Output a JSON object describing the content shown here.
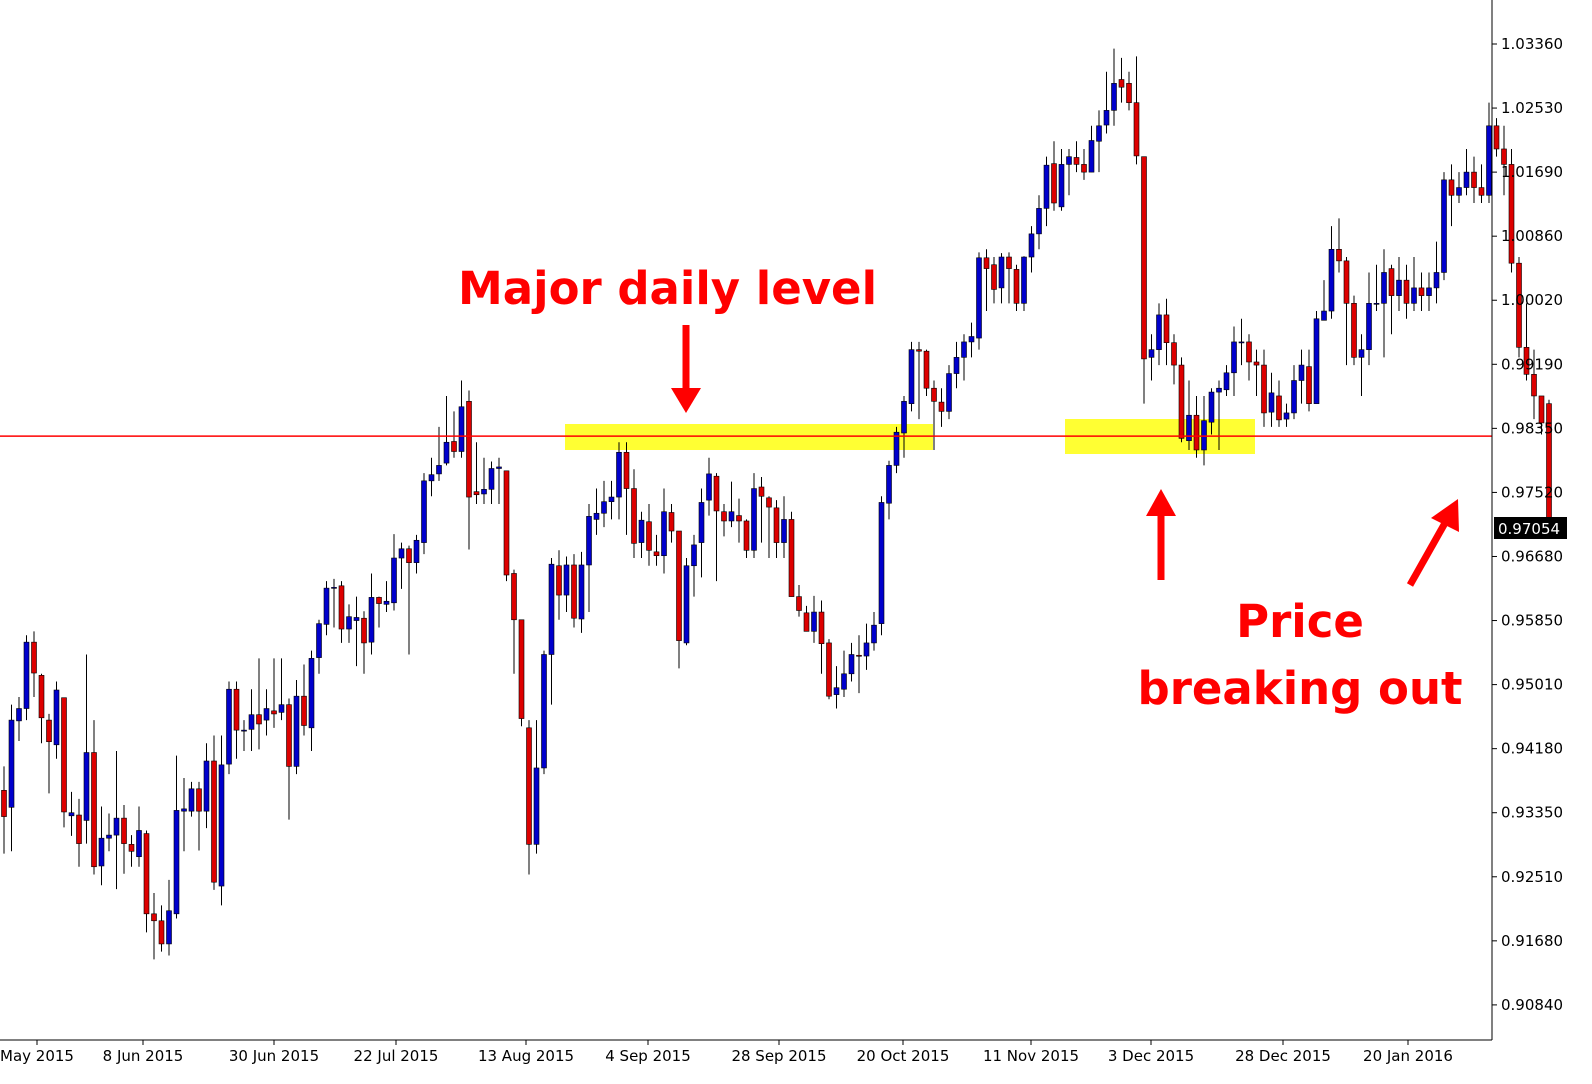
{
  "chart_data": {
    "type": "candlestick",
    "y_axis_ticks": [
      "1.03360",
      "1.02530",
      "1.01690",
      "1.00860",
      "1.00020",
      "0.99190",
      "0.98350",
      "0.97520",
      "0.96680",
      "0.95850",
      "0.95010",
      "0.94180",
      "0.93350",
      "0.92510",
      "0.91680",
      "0.90840"
    ],
    "ylim": [
      0.9036,
      1.0377
    ],
    "x_axis_ticks": [
      "May 2015",
      "8 Jun 2015",
      "30 Jun 2015",
      "22 Jul 2015",
      "13 Aug 2015",
      "4 Sep 2015",
      "28 Sep 2015",
      "20 Oct 2015",
      "11 Nov 2015",
      "3 Dec 2015",
      "28 Dec 2015",
      "20 Jan 2016"
    ],
    "current_price": "0.97054",
    "level_price": 0.9828,
    "colors": {
      "up": "#0000cc",
      "down": "#dd0000",
      "level": "#ff0000",
      "zone": "#ffff33",
      "annotation": "#ff0000"
    },
    "annotations": [
      "Major daily level",
      "Price",
      "breaking out"
    ],
    "candles": [
      [
        0.9369,
        0.9335,
        0.94,
        0.9287
      ],
      [
        0.9347,
        0.946,
        0.948,
        0.929
      ],
      [
        0.9459,
        0.9475,
        0.949,
        0.9433
      ],
      [
        0.9475,
        0.9561,
        0.957,
        0.946
      ],
      [
        0.9561,
        0.9521,
        0.9575,
        0.949
      ],
      [
        0.9518,
        0.9463,
        0.952,
        0.943
      ],
      [
        0.946,
        0.9432,
        0.9468,
        0.9365
      ],
      [
        0.9428,
        0.9499,
        0.951,
        0.941
      ],
      [
        0.9489,
        0.9341,
        0.9489,
        0.9321
      ],
      [
        0.9336,
        0.934,
        0.9367,
        0.931
      ],
      [
        0.9337,
        0.93,
        0.9358,
        0.927
      ],
      [
        0.933,
        0.9418,
        0.9545,
        0.93
      ],
      [
        0.9418,
        0.927,
        0.946,
        0.926
      ],
      [
        0.9271,
        0.9307,
        0.9348,
        0.9246
      ],
      [
        0.9307,
        0.9311,
        0.9339,
        0.929
      ],
      [
        0.9311,
        0.9333,
        0.942,
        0.9241
      ],
      [
        0.9333,
        0.93,
        0.935,
        0.9261
      ],
      [
        0.9299,
        0.929,
        0.9311,
        0.927
      ],
      [
        0.9283,
        0.9317,
        0.9348,
        0.927
      ],
      [
        0.9313,
        0.9209,
        0.9317,
        0.9185
      ],
      [
        0.9209,
        0.92,
        0.9236,
        0.915
      ],
      [
        0.92,
        0.917,
        0.922,
        0.916
      ],
      [
        0.917,
        0.9213,
        0.9253,
        0.9155
      ],
      [
        0.9209,
        0.9343,
        0.9414,
        0.9203
      ],
      [
        0.9342,
        0.9345,
        0.9385,
        0.929
      ],
      [
        0.9342,
        0.9371,
        0.938,
        0.9335
      ],
      [
        0.9371,
        0.9342,
        0.938,
        0.9291
      ],
      [
        0.9342,
        0.9407,
        0.943,
        0.932
      ],
      [
        0.9407,
        0.925,
        0.944,
        0.924
      ],
      [
        0.9245,
        0.9402,
        0.944,
        0.922
      ],
      [
        0.9403,
        0.95,
        0.951,
        0.939
      ],
      [
        0.95,
        0.9447,
        0.951,
        0.941
      ],
      [
        0.9447,
        0.9447,
        0.946,
        0.942
      ],
      [
        0.9448,
        0.9467,
        0.95,
        0.942
      ],
      [
        0.9467,
        0.9455,
        0.954,
        0.9422
      ],
      [
        0.946,
        0.9475,
        0.95,
        0.944
      ],
      [
        0.9472,
        0.9468,
        0.954,
        0.945
      ],
      [
        0.947,
        0.948,
        0.954,
        0.946
      ],
      [
        0.948,
        0.94,
        0.9488,
        0.9331
      ],
      [
        0.94,
        0.9491,
        0.9512,
        0.939
      ],
      [
        0.9491,
        0.9453,
        0.9532,
        0.944
      ],
      [
        0.945,
        0.954,
        0.955,
        0.942
      ],
      [
        0.9541,
        0.9585,
        0.959,
        0.952
      ],
      [
        0.9584,
        0.9631,
        0.964,
        0.957
      ],
      [
        0.9631,
        0.9632,
        0.9643,
        0.958
      ],
      [
        0.9634,
        0.9578,
        0.964,
        0.956
      ],
      [
        0.9578,
        0.9594,
        0.961,
        0.956
      ],
      [
        0.9589,
        0.9593,
        0.962,
        0.953
      ],
      [
        0.9592,
        0.956,
        0.9601,
        0.952
      ],
      [
        0.9561,
        0.9619,
        0.965,
        0.9545
      ],
      [
        0.9619,
        0.9611,
        0.962,
        0.958
      ],
      [
        0.961,
        0.9614,
        0.964,
        0.96
      ],
      [
        0.9612,
        0.967,
        0.9701,
        0.9602
      ],
      [
        0.967,
        0.9682,
        0.969,
        0.963
      ],
      [
        0.9682,
        0.9664,
        0.9686,
        0.9545
      ],
      [
        0.9664,
        0.9693,
        0.97,
        0.965
      ],
      [
        0.969,
        0.977,
        0.978,
        0.9675
      ],
      [
        0.977,
        0.9778,
        0.98,
        0.975
      ],
      [
        0.9779,
        0.979,
        0.984,
        0.977
      ],
      [
        0.9793,
        0.982,
        0.988,
        0.979
      ],
      [
        0.9821,
        0.9808,
        0.986,
        0.98
      ],
      [
        0.9808,
        0.9866,
        0.99,
        0.98
      ],
      [
        0.9873,
        0.9749,
        0.9887,
        0.9681
      ],
      [
        0.9756,
        0.9752,
        0.982,
        0.974
      ],
      [
        0.9753,
        0.9759,
        0.98,
        0.974
      ],
      [
        0.9759,
        0.9786,
        0.9795,
        0.974
      ],
      [
        0.9786,
        0.9788,
        0.98,
        0.974
      ],
      [
        0.9783,
        0.9648,
        0.9783,
        0.964
      ],
      [
        0.965,
        0.959,
        0.9655,
        0.952
      ],
      [
        0.959,
        0.9462,
        0.959,
        0.9452
      ],
      [
        0.945,
        0.9299,
        0.946,
        0.926
      ],
      [
        0.9299,
        0.9398,
        0.946,
        0.9287
      ],
      [
        0.9398,
        0.9545,
        0.955,
        0.939
      ],
      [
        0.9545,
        0.9662,
        0.967,
        0.948
      ],
      [
        0.966,
        0.9622,
        0.968,
        0.959
      ],
      [
        0.9622,
        0.9661,
        0.9672,
        0.96
      ],
      [
        0.9661,
        0.9592,
        0.9675,
        0.958
      ],
      [
        0.9591,
        0.9661,
        0.9678,
        0.9573
      ],
      [
        0.9661,
        0.9724,
        0.974,
        0.96
      ],
      [
        0.972,
        0.9728,
        0.976,
        0.97
      ],
      [
        0.9728,
        0.9743,
        0.977,
        0.971
      ],
      [
        0.9743,
        0.9749,
        0.977,
        0.972
      ],
      [
        0.9749,
        0.9807,
        0.982,
        0.972
      ],
      [
        0.9807,
        0.976,
        0.982,
        0.97
      ],
      [
        0.976,
        0.9689,
        0.9785,
        0.967
      ],
      [
        0.969,
        0.9719,
        0.973,
        0.967
      ],
      [
        0.9717,
        0.968,
        0.974,
        0.966
      ],
      [
        0.9678,
        0.9673,
        0.97,
        0.966
      ],
      [
        0.9673,
        0.973,
        0.976,
        0.965
      ],
      [
        0.9729,
        0.9705,
        0.974,
        0.969
      ],
      [
        0.9705,
        0.9563,
        0.9705,
        0.9527
      ],
      [
        0.956,
        0.966,
        0.967,
        0.9557
      ],
      [
        0.966,
        0.9687,
        0.97,
        0.962
      ],
      [
        0.969,
        0.9742,
        0.976,
        0.9645
      ],
      [
        0.9745,
        0.9779,
        0.98,
        0.9725
      ],
      [
        0.9776,
        0.9731,
        0.978,
        0.964
      ],
      [
        0.973,
        0.9718,
        0.974,
        0.9698
      ],
      [
        0.9718,
        0.973,
        0.9769,
        0.971
      ],
      [
        0.9725,
        0.9718,
        0.9747,
        0.969
      ],
      [
        0.9718,
        0.968,
        0.972,
        0.967
      ],
      [
        0.968,
        0.976,
        0.978,
        0.967
      ],
      [
        0.9762,
        0.975,
        0.9775,
        0.969
      ],
      [
        0.9748,
        0.9736,
        0.975,
        0.967
      ],
      [
        0.9735,
        0.969,
        0.9745,
        0.967
      ],
      [
        0.969,
        0.972,
        0.975,
        0.967
      ],
      [
        0.972,
        0.962,
        0.973,
        0.962
      ],
      [
        0.962,
        0.9602,
        0.9635,
        0.9594
      ],
      [
        0.9599,
        0.9575,
        0.9608,
        0.9575
      ],
      [
        0.9575,
        0.96,
        0.9621,
        0.956
      ],
      [
        0.96,
        0.9559,
        0.9615,
        0.952
      ],
      [
        0.956,
        0.9491,
        0.9565,
        0.9487
      ],
      [
        0.9493,
        0.9502,
        0.953,
        0.9475
      ],
      [
        0.95,
        0.952,
        0.955,
        0.949
      ],
      [
        0.952,
        0.9545,
        0.956,
        0.951
      ],
      [
        0.9544,
        0.9543,
        0.957,
        0.9495
      ],
      [
        0.9543,
        0.956,
        0.9585,
        0.9525
      ],
      [
        0.956,
        0.9583,
        0.96,
        0.955
      ],
      [
        0.9585,
        0.9742,
        0.975,
        0.957
      ],
      [
        0.9741,
        0.979,
        0.9796,
        0.972
      ],
      [
        0.979,
        0.9833,
        0.984,
        0.978
      ],
      [
        0.9832,
        0.9873,
        0.988,
        0.98
      ],
      [
        0.987,
        0.994,
        0.995,
        0.986
      ],
      [
        0.994,
        0.9938,
        0.995,
        0.985
      ],
      [
        0.9938,
        0.989,
        0.994,
        0.988
      ],
      [
        0.989,
        0.9873,
        0.99,
        0.981
      ],
      [
        0.9872,
        0.986,
        0.989,
        0.984
      ],
      [
        0.986,
        0.9909,
        0.992,
        0.985
      ],
      [
        0.9909,
        0.993,
        0.995,
        0.989
      ],
      [
        0.993,
        0.995,
        0.996,
        0.99
      ],
      [
        0.995,
        0.9957,
        0.9975,
        0.993
      ],
      [
        0.9955,
        1.0059,
        1.0066,
        0.994
      ],
      [
        1.0059,
        1.0045,
        1.007,
        0.999
      ],
      [
        1.005,
        1.0018,
        1.006,
        1.0
      ],
      [
        1.002,
        1.006,
        1.0065,
        1.0
      ],
      [
        1.006,
        1.0045,
        1.0066,
        1.0
      ],
      [
        1.0044,
        1.0,
        1.005,
        0.999
      ],
      [
        1.0,
        1.006,
        1.0061,
        0.999
      ],
      [
        1.006,
        1.009,
        1.01,
        1.004
      ],
      [
        1.009,
        1.0123,
        1.014,
        1.007
      ],
      [
        1.0123,
        1.0179,
        1.019,
        1.01
      ],
      [
        1.0181,
        1.013,
        1.021,
        1.012
      ],
      [
        1.0125,
        1.018,
        1.02,
        1.012
      ],
      [
        1.018,
        1.019,
        1.02,
        1.014
      ],
      [
        1.0189,
        1.018,
        1.021,
        1.017
      ],
      [
        1.018,
        1.017,
        1.02,
        1.016
      ],
      [
        1.017,
        1.0211,
        1.023,
        1.017
      ],
      [
        1.021,
        1.023,
        1.025,
        1.017
      ],
      [
        1.0231,
        1.025,
        1.03,
        1.022
      ],
      [
        1.025,
        1.0285,
        1.033,
        1.023
      ],
      [
        1.029,
        1.028,
        1.0318,
        1.026
      ],
      [
        1.0285,
        1.026,
        1.03,
        1.025
      ],
      [
        1.026,
        1.0191,
        1.032,
        1.018
      ],
      [
        1.019,
        0.9928,
        1.019,
        0.987
      ],
      [
        0.993,
        0.994,
        0.996,
        0.99
      ],
      [
        0.994,
        0.9985,
        1.0,
        0.992
      ],
      [
        0.9985,
        0.9949,
        1.0006,
        0.992
      ],
      [
        0.9949,
        0.992,
        0.996,
        0.9895
      ],
      [
        0.992,
        0.9825,
        0.993,
        0.982
      ],
      [
        0.9822,
        0.9855,
        0.99,
        0.981
      ],
      [
        0.9855,
        0.981,
        0.988,
        0.98
      ],
      [
        0.981,
        0.9848,
        0.988,
        0.979
      ],
      [
        0.9846,
        0.9885,
        0.989,
        0.983
      ],
      [
        0.9885,
        0.989,
        0.99,
        0.981
      ],
      [
        0.9888,
        0.991,
        0.992,
        0.988
      ],
      [
        0.991,
        0.995,
        0.997,
        0.988
      ],
      [
        0.995,
        0.995,
        0.998,
        0.992
      ],
      [
        0.995,
        0.9924,
        0.996,
        0.99
      ],
      [
        0.9924,
        0.992,
        0.994,
        0.988
      ],
      [
        0.992,
        0.9858,
        0.994,
        0.984
      ],
      [
        0.9859,
        0.9884,
        0.991,
        0.984
      ],
      [
        0.988,
        0.9849,
        0.99,
        0.984
      ],
      [
        0.985,
        0.9858,
        0.987,
        0.984
      ],
      [
        0.9858,
        0.99,
        0.992,
        0.985
      ],
      [
        0.99,
        0.992,
        0.994,
        0.987
      ],
      [
        0.9918,
        0.987,
        0.994,
        0.986
      ],
      [
        0.987,
        0.998,
        0.999,
        0.987
      ],
      [
        0.9978,
        0.999,
        1.003,
        0.998
      ],
      [
        0.999,
        1.007,
        1.01,
        0.998
      ],
      [
        1.007,
        1.0055,
        1.011,
        1.004
      ],
      [
        1.0055,
        1.0,
        1.006,
        0.992
      ],
      [
        1.0,
        0.993,
        1.001,
        0.992
      ],
      [
        0.993,
        0.994,
        0.996,
        0.988
      ],
      [
        0.994,
        1.0,
        1.004,
        0.992
      ],
      [
        1.0,
        1.0,
        1.005,
        0.999
      ],
      [
        1.0,
        1.004,
        1.007,
        0.993
      ],
      [
        1.0045,
        1.001,
        1.005,
        0.996
      ],
      [
        1.001,
        1.003,
        1.006,
        0.999
      ],
      [
        1.003,
        1.0,
        1.005,
        0.998
      ],
      [
        1.0,
        1.002,
        1.006,
        0.999
      ],
      [
        1.002,
        1.001,
        1.004,
        0.999
      ],
      [
        1.001,
        1.002,
        1.004,
        0.999
      ],
      [
        1.002,
        1.004,
        1.008,
        1.0
      ],
      [
        1.004,
        1.016,
        1.017,
        1.003
      ],
      [
        1.016,
        1.014,
        1.018,
        1.01
      ],
      [
        1.014,
        1.015,
        1.017,
        1.013
      ],
      [
        1.015,
        1.017,
        1.02,
        1.014
      ],
      [
        1.017,
        1.015,
        1.019,
        1.013
      ],
      [
        1.015,
        1.014,
        1.018,
        1.013
      ],
      [
        1.014,
        1.023,
        1.026,
        1.013
      ],
      [
        1.023,
        1.02,
        1.024,
        1.019
      ],
      [
        1.02,
        1.018,
        1.023,
        1.014
      ],
      [
        1.018,
        1.0052,
        1.02,
        1.004
      ],
      [
        1.0052,
        0.9943,
        1.006,
        0.993
      ],
      [
        0.9943,
        0.9908,
        1.0,
        0.99
      ],
      [
        0.9908,
        0.988,
        0.994,
        0.985
      ],
      [
        0.988,
        0.9845,
        0.988,
        0.983
      ],
      [
        0.987,
        0.9705,
        0.9875,
        0.97
      ]
    ]
  }
}
